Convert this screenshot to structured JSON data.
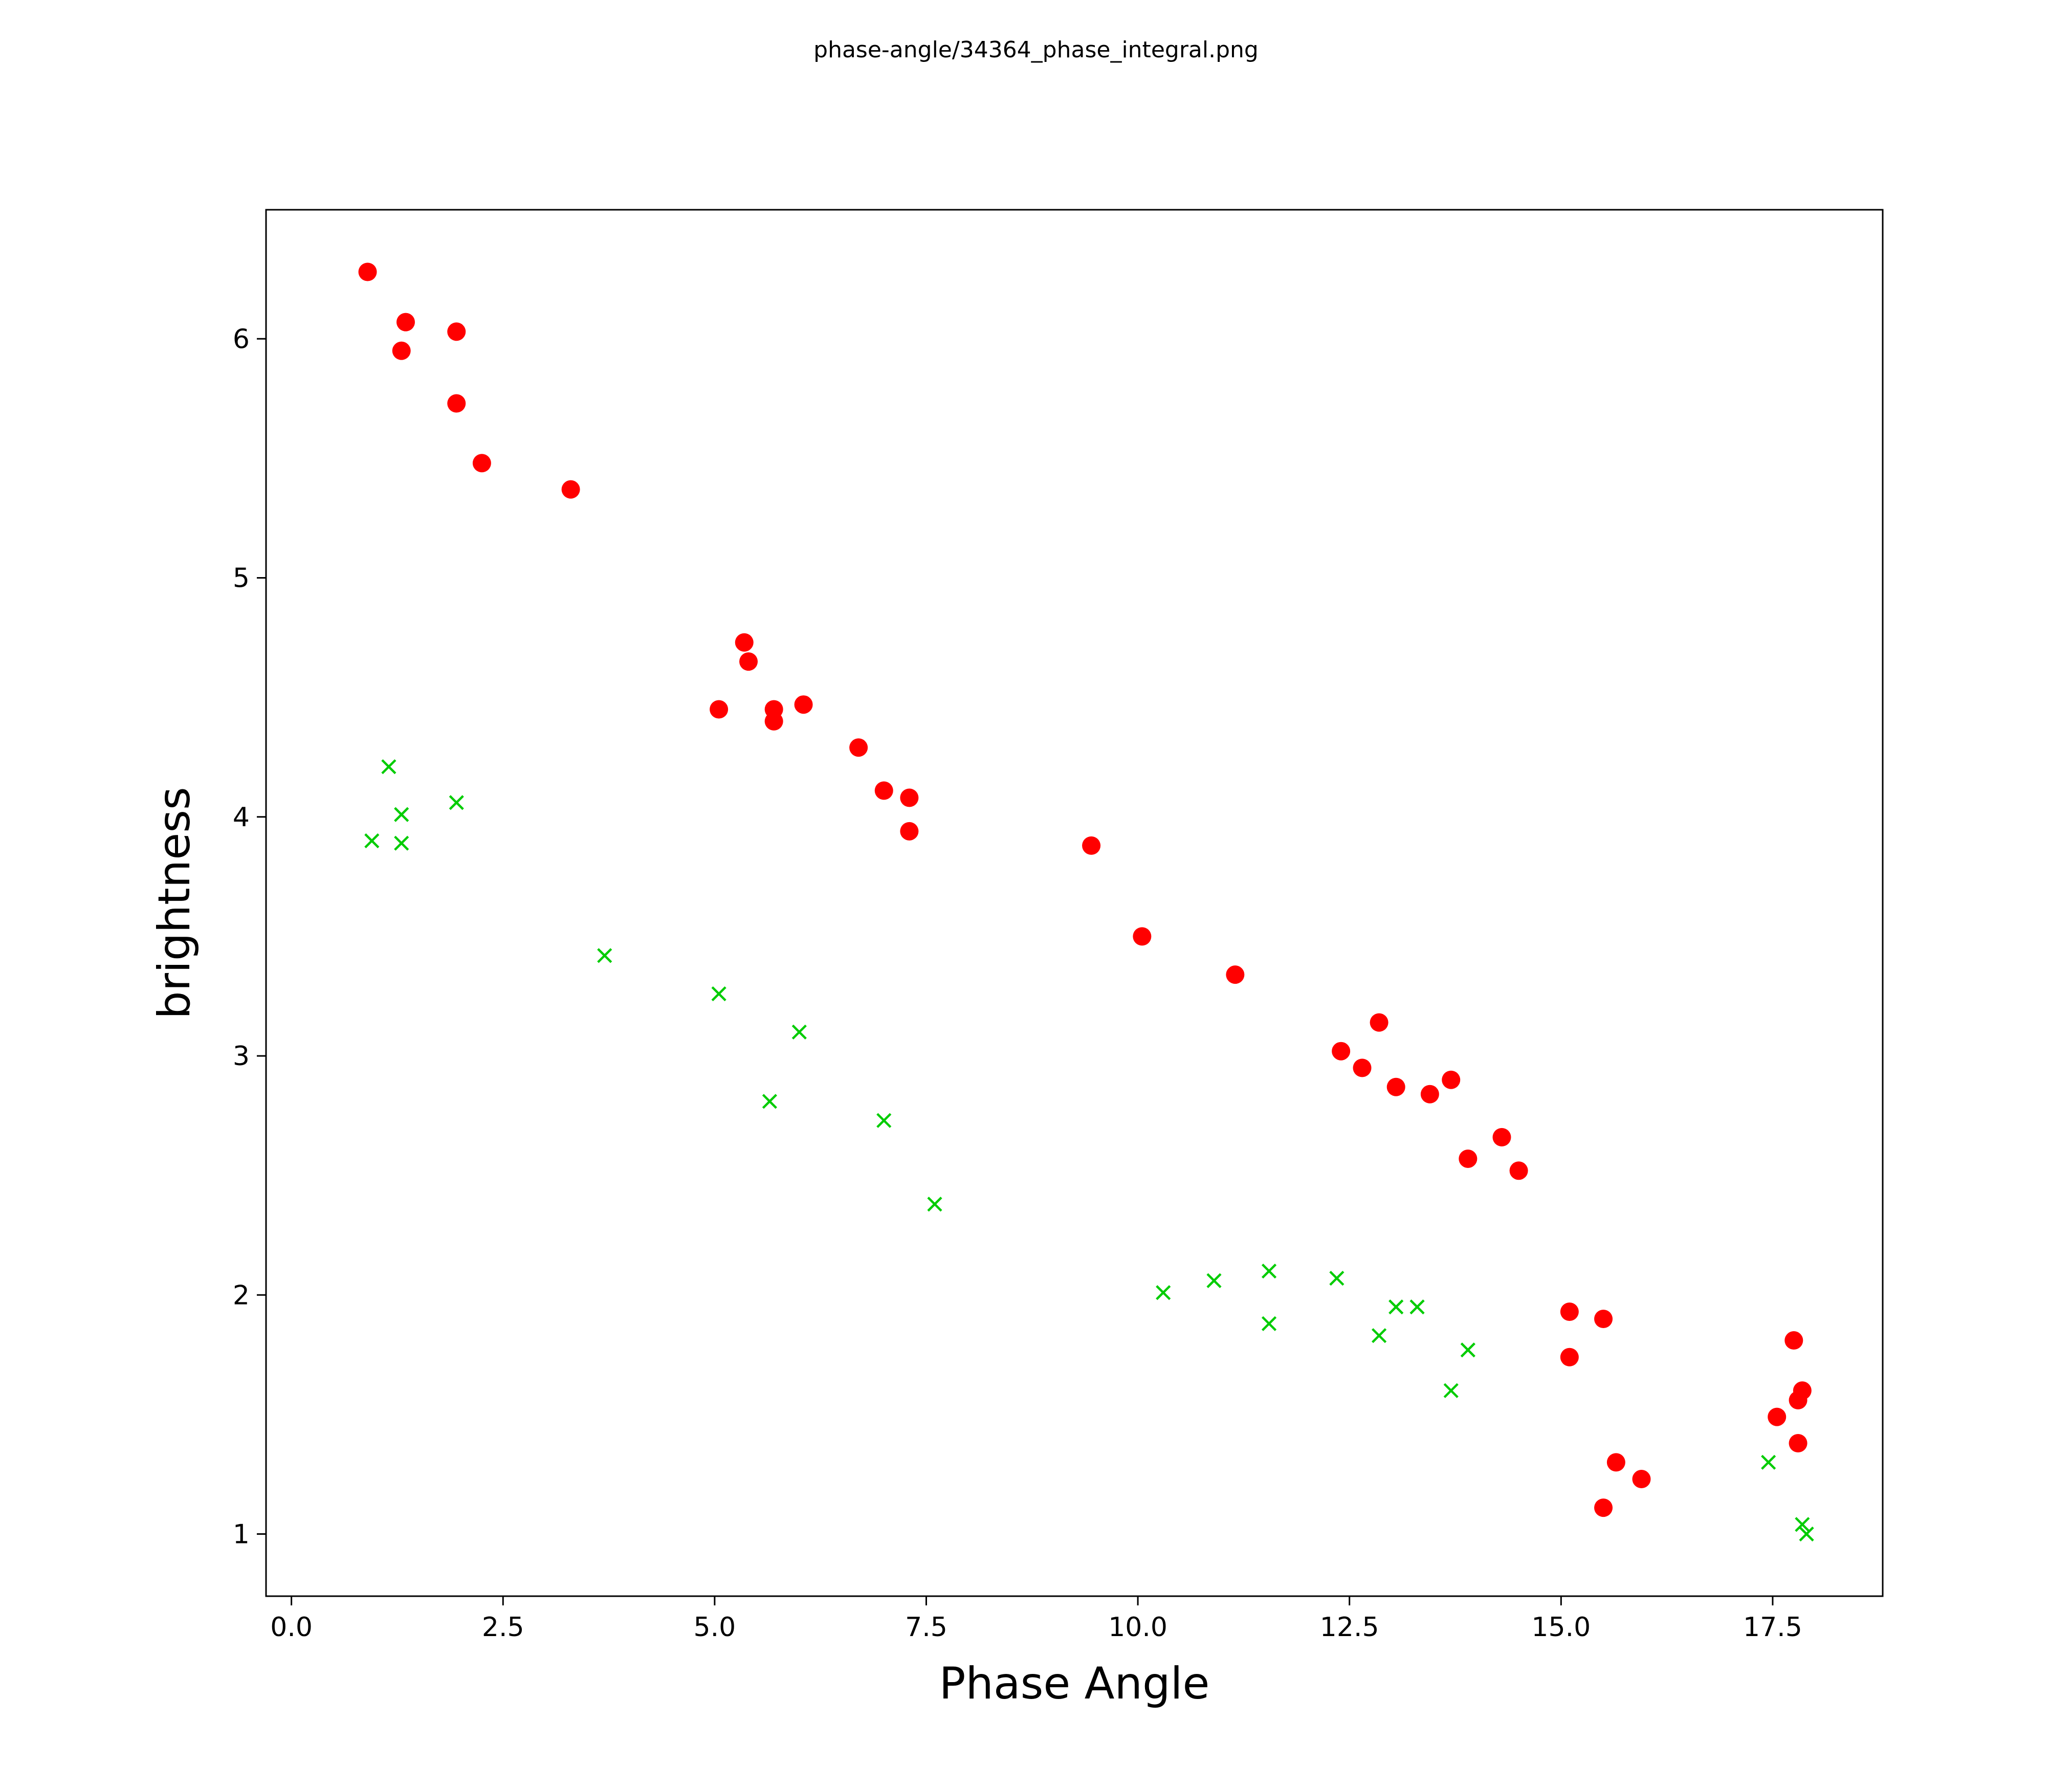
{
  "chart_data": {
    "type": "scatter",
    "title": "phase-angle/34364_phase_integral.png",
    "xlabel": "Phase Angle",
    "ylabel": "brightness",
    "xlim": [
      -0.3,
      18.8
    ],
    "ylim": [
      0.74,
      6.54
    ],
    "xticks": [
      0.0,
      2.5,
      5.0,
      7.5,
      10.0,
      12.5,
      15.0,
      17.5
    ],
    "xtick_labels": [
      "0.0",
      "2.5",
      "5.0",
      "7.5",
      "10.0",
      "12.5",
      "15.0",
      "17.5"
    ],
    "yticks": [
      1,
      2,
      3,
      4,
      5,
      6
    ],
    "ytick_labels": [
      "1",
      "2",
      "3",
      "4",
      "5",
      "6"
    ],
    "grid": false,
    "legend": null,
    "series": [
      {
        "name": "red-circles",
        "marker": "circle",
        "color": "#ff0000",
        "points": [
          [
            0.9,
            6.28
          ],
          [
            1.35,
            6.07
          ],
          [
            1.3,
            5.95
          ],
          [
            1.95,
            6.03
          ],
          [
            1.95,
            5.73
          ],
          [
            2.25,
            5.48
          ],
          [
            3.3,
            5.37
          ],
          [
            5.35,
            4.73
          ],
          [
            5.4,
            4.65
          ],
          [
            5.05,
            4.45
          ],
          [
            5.7,
            4.45
          ],
          [
            5.7,
            4.4
          ],
          [
            6.05,
            4.47
          ],
          [
            6.7,
            4.29
          ],
          [
            7.0,
            4.11
          ],
          [
            7.3,
            4.08
          ],
          [
            7.3,
            3.94
          ],
          [
            9.45,
            3.88
          ],
          [
            10.05,
            3.5
          ],
          [
            11.15,
            3.34
          ],
          [
            12.4,
            3.02
          ],
          [
            12.85,
            3.14
          ],
          [
            12.65,
            2.95
          ],
          [
            13.05,
            2.87
          ],
          [
            13.45,
            2.84
          ],
          [
            13.7,
            2.9
          ],
          [
            13.9,
            2.57
          ],
          [
            14.3,
            2.66
          ],
          [
            14.5,
            2.52
          ],
          [
            15.1,
            1.93
          ],
          [
            15.5,
            1.9
          ],
          [
            15.1,
            1.74
          ],
          [
            15.65,
            1.3
          ],
          [
            15.95,
            1.23
          ],
          [
            15.5,
            1.11
          ],
          [
            17.75,
            1.81
          ],
          [
            17.85,
            1.6
          ],
          [
            17.8,
            1.56
          ],
          [
            17.55,
            1.49
          ],
          [
            17.8,
            1.38
          ]
        ]
      },
      {
        "name": "green-crosses",
        "marker": "x",
        "color": "#00cc00",
        "points": [
          [
            1.15,
            4.21
          ],
          [
            1.3,
            4.01
          ],
          [
            1.95,
            4.06
          ],
          [
            0.95,
            3.9
          ],
          [
            1.3,
            3.89
          ],
          [
            3.7,
            3.42
          ],
          [
            5.05,
            3.26
          ],
          [
            6.0,
            3.1
          ],
          [
            5.65,
            2.81
          ],
          [
            7.0,
            2.73
          ],
          [
            7.6,
            2.38
          ],
          [
            10.3,
            2.01
          ],
          [
            10.9,
            2.06
          ],
          [
            11.55,
            2.1
          ],
          [
            12.35,
            2.07
          ],
          [
            11.55,
            1.88
          ],
          [
            13.05,
            1.95
          ],
          [
            13.3,
            1.95
          ],
          [
            12.85,
            1.83
          ],
          [
            13.9,
            1.77
          ],
          [
            13.7,
            1.6
          ],
          [
            17.45,
            1.3
          ],
          [
            17.85,
            1.04
          ],
          [
            17.9,
            1.0
          ]
        ]
      }
    ],
    "axis_color": "#000000",
    "background": "#ffffff"
  }
}
